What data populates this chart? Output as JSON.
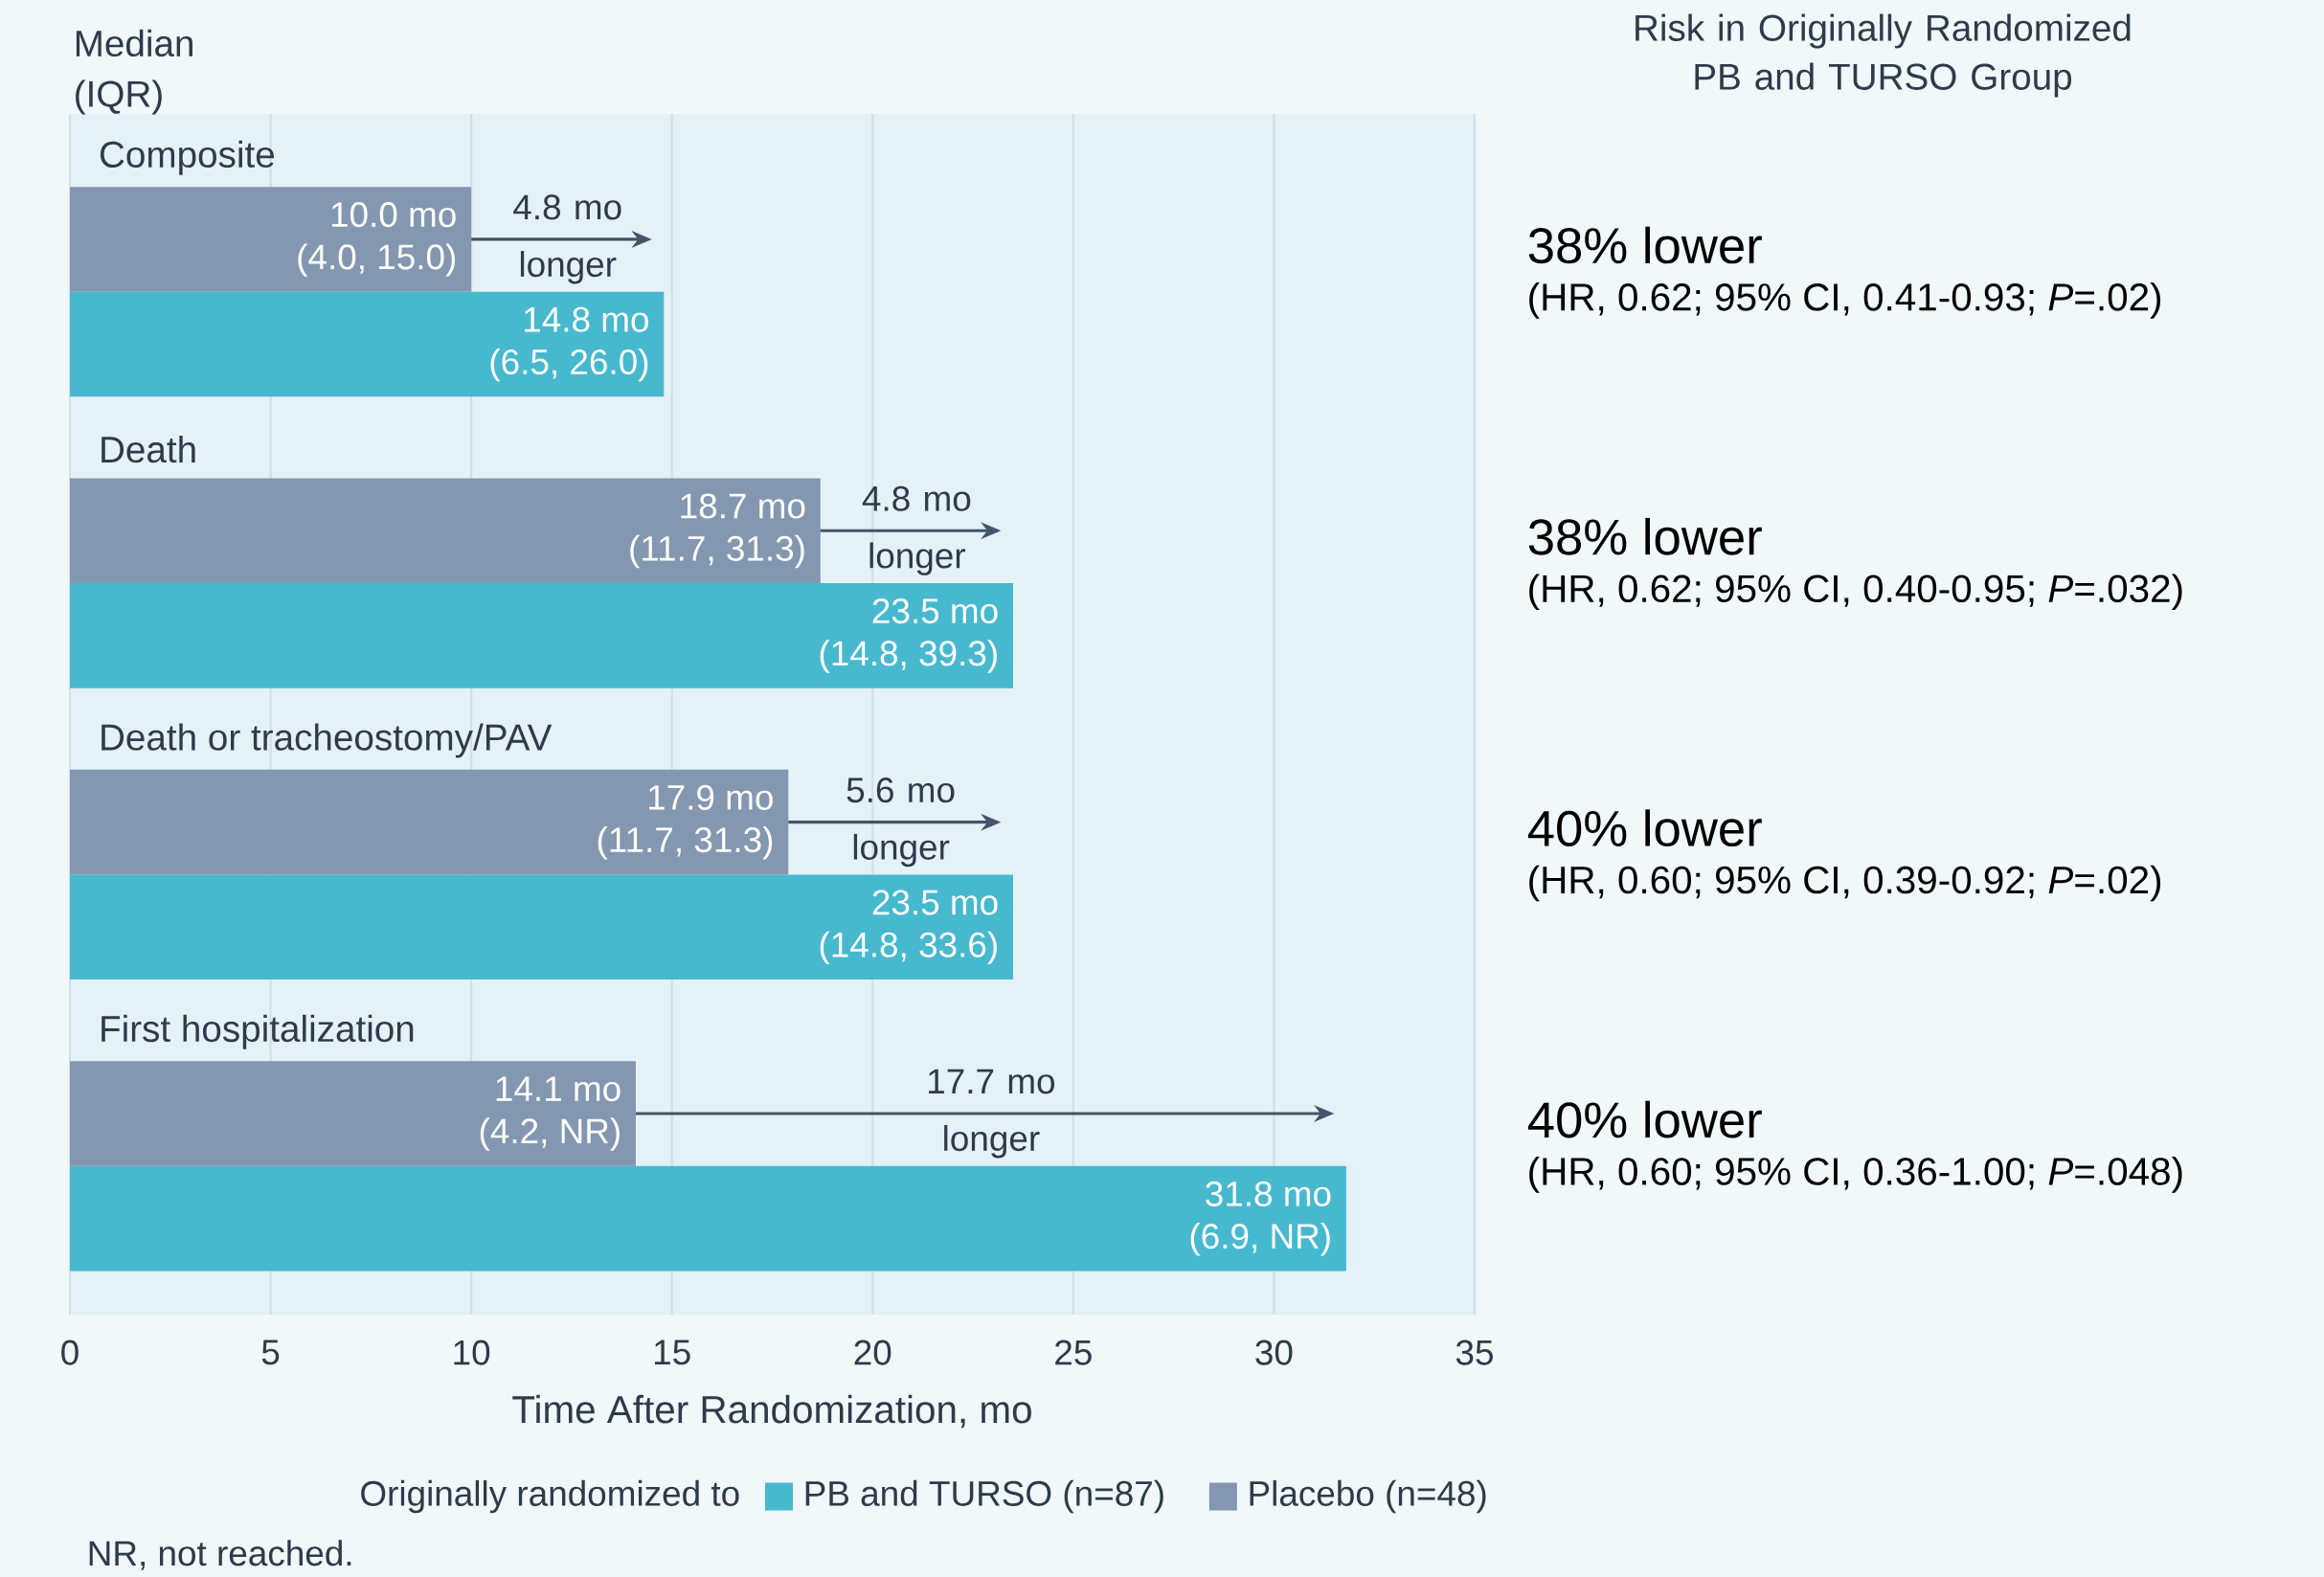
{
  "chart_data": {
    "type": "bar",
    "orientation": "horizontal",
    "categories": [
      "Composite",
      "Death",
      "Death or tracheostomy/PAV",
      "First hospitalization"
    ],
    "series": [
      {
        "name": "PB and TURSO (n=87)",
        "color": "#47b9cf",
        "values": [
          14.8,
          23.5,
          23.5,
          31.8
        ],
        "value_labels": [
          "14.8 mo (6.5, 26.0)",
          "23.5 mo (14.8, 39.3)",
          "23.5 mo (14.8, 33.6)",
          "31.8 mo (6.9, NR)"
        ]
      },
      {
        "name": "Placebo (n=48)",
        "color": "#8497b0",
        "values": [
          10.0,
          18.7,
          17.9,
          14.1
        ],
        "value_labels": [
          "10.0 mo (4.0, 15.0)",
          "18.7 mo (11.7, 31.3)",
          "17.9 mo (11.7, 31.3)",
          "14.1 mo (4.2, NR)"
        ]
      }
    ],
    "xlabel": "Time After Randomization, mo",
    "xlim": [
      0,
      35
    ],
    "xticks": [
      0,
      5,
      10,
      15,
      20,
      25,
      30,
      35
    ],
    "grid": "x",
    "legend": "bottom",
    "legend_title": "Originally randomized to",
    "annotations": [
      "Median (IQR)",
      "Risk in Originally Randomized PB and TURSO Group",
      "4.8 mo longer",
      "4.8 mo longer",
      "5.6 mo longer",
      "17.7 mo longer",
      "38% lower",
      "(HR, 0.62; 95% CI, 0.41-0.93; *P*=.02)",
      "38% lower",
      "(HR, 0.62; 95% CI, 0.40-0.95; *P*=.032)",
      "40% lower",
      "(HR, 0.60; 95% CI, 0.39-0.92; *P*=.02)",
      "40% lower",
      "(HR, 0.60; 95% CI, 0.36-1.00; *P*=.048)",
      "NR, not reached."
    ]
  }
}
